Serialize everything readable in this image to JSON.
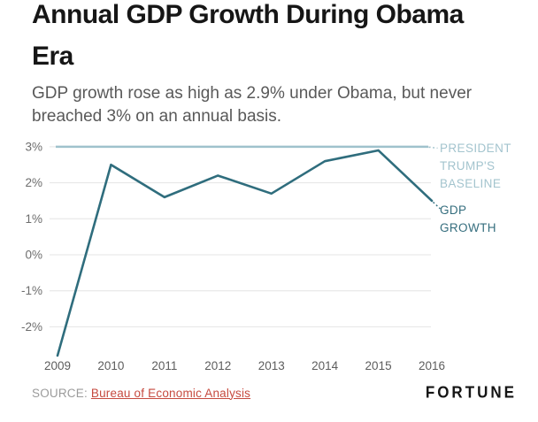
{
  "header": {
    "title": "Annual GDP Growth During Obama\nEra",
    "subtitle": "GDP growth rose as high as 2.9% under Obama, but never\nbreached 3% on an annual basis."
  },
  "chart_data": {
    "type": "line",
    "title": "Annual GDP Growth During Obama Era",
    "x": [
      2009,
      2010,
      2011,
      2012,
      2013,
      2014,
      2015,
      2016
    ],
    "xtick_labels": [
      "2009",
      "2010",
      "2011",
      "2012",
      "2013",
      "2014",
      "2015",
      "2016"
    ],
    "series": [
      {
        "name": "GDP GROWTH",
        "values": [
          -2.8,
          2.5,
          1.6,
          2.2,
          1.7,
          2.6,
          2.9,
          1.5
        ],
        "color": "#2f6d7d",
        "style": "solid"
      },
      {
        "name": "PRESIDENT TRUMP'S BASELINE",
        "values": [
          3,
          3,
          3,
          3,
          3,
          3,
          3,
          3
        ],
        "color": "#9fc2cc",
        "style": "solid"
      }
    ],
    "yticks": [
      3,
      2,
      1,
      0,
      -1,
      -2
    ],
    "ytick_labels": [
      "3%",
      "2%",
      "1%",
      "0%",
      "-1%",
      "-2%"
    ],
    "ylim": [
      -2.9,
      3.15
    ],
    "xlabel": "",
    "ylabel": "",
    "grid": "horizontal-only",
    "legend_position": "right-inline-labels",
    "annotations": {
      "baseline_label": "PRESIDENT\nTRUMP'S\nBASELINE",
      "series_label": "GDP\nGROWTH"
    }
  },
  "footer": {
    "source_label": "SOURCE:",
    "source_link": "Bureau of Economic Analysis",
    "brand": "FORTUNE"
  },
  "colors": {
    "gdp_line": "#2f6d7d",
    "baseline_line": "#9fc2cc",
    "baseline_label_text": "#a3c4ce",
    "gdp_label_text": "#356e7e",
    "gridline": "#e4e4e4",
    "link_red": "#c64a3f"
  }
}
